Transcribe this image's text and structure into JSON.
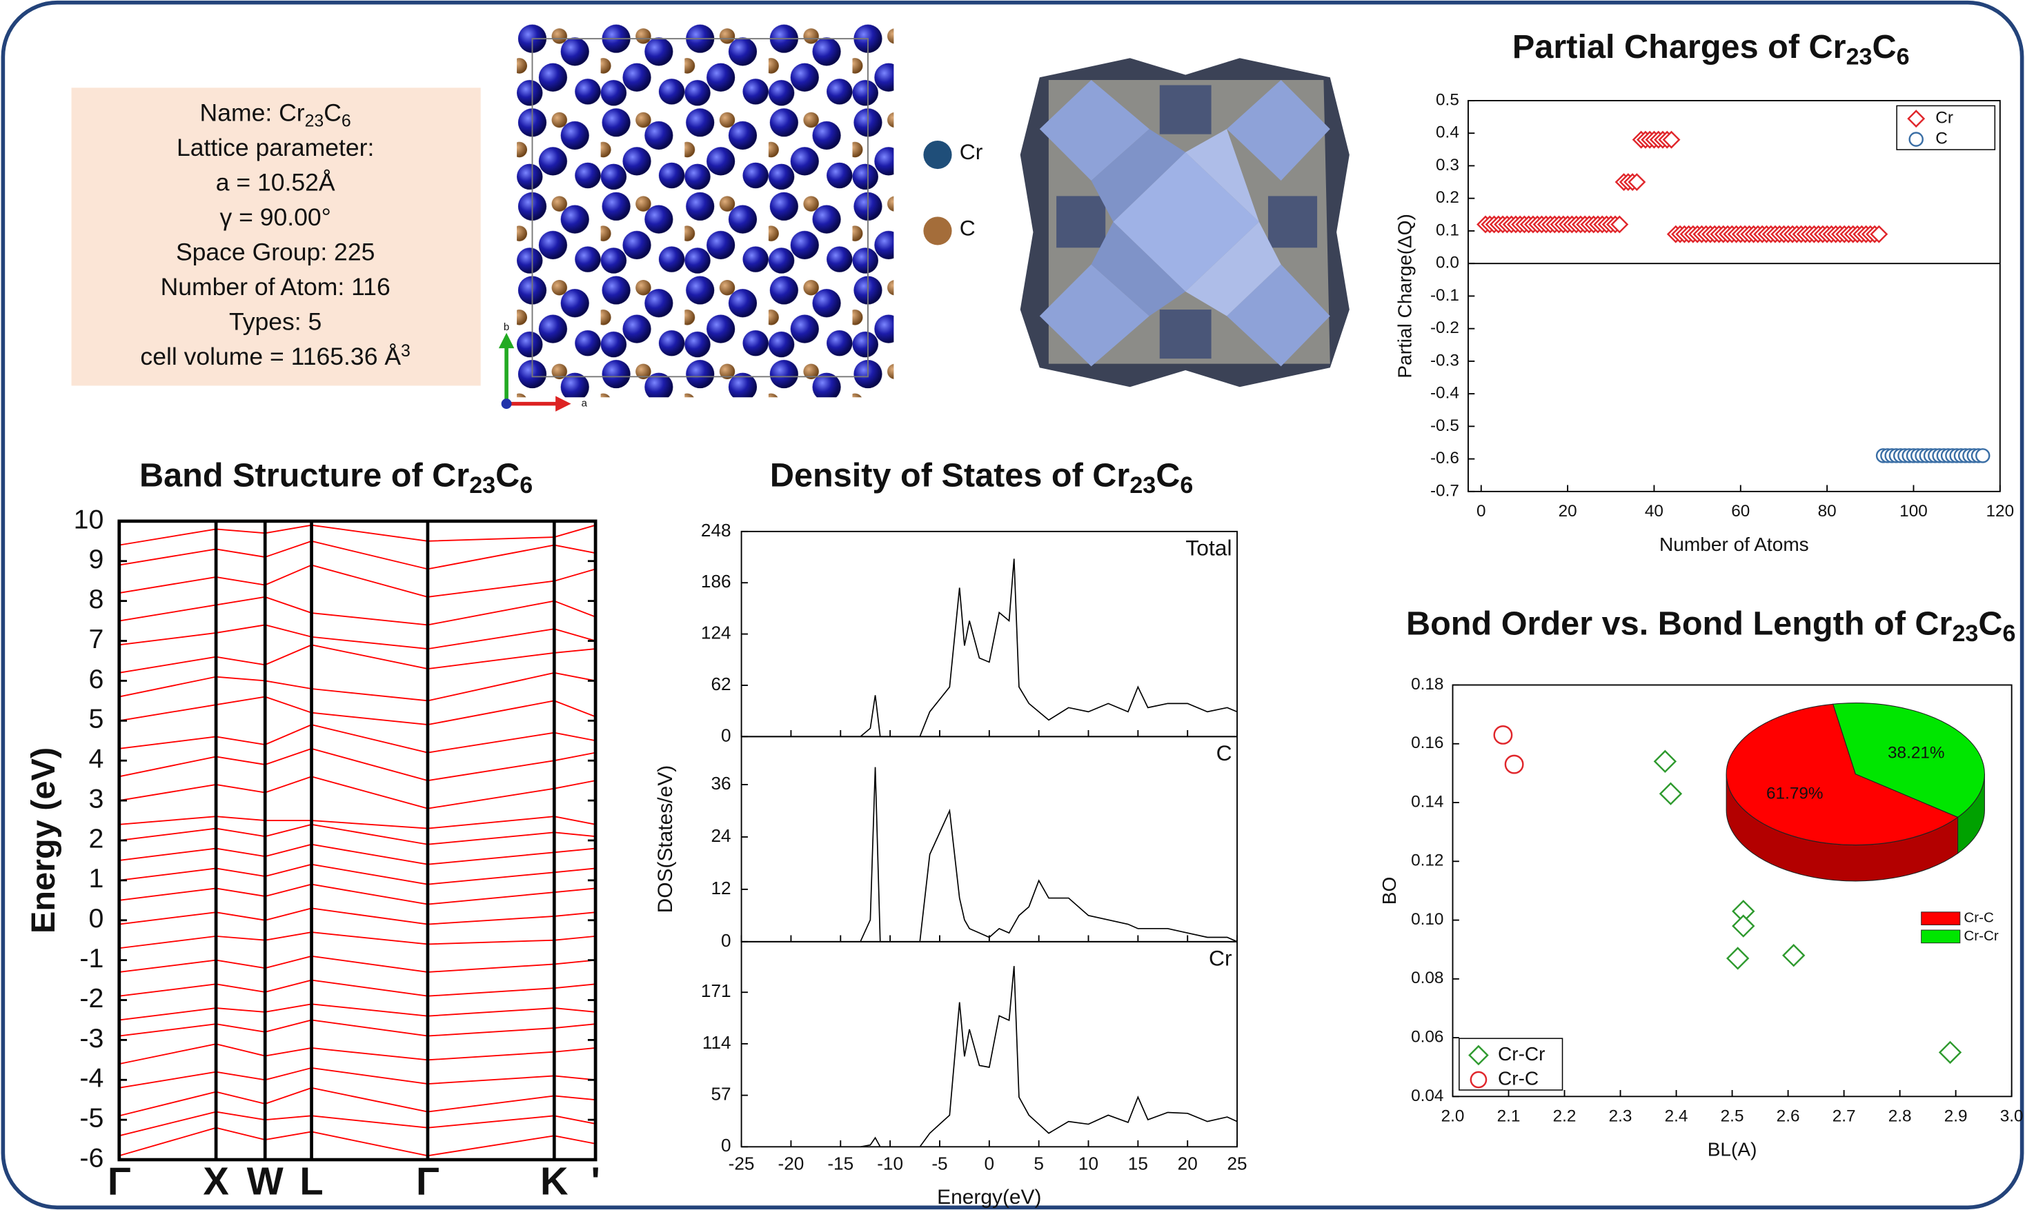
{
  "info": {
    "lines": [
      [
        "Name: Cr",
        "23",
        "C",
        "6"
      ],
      [
        "Lattice parameter:"
      ],
      [
        "a = 10.52Å"
      ],
      [
        "γ = 90.00°"
      ],
      [
        "Space Group: 225"
      ],
      [
        "Number of Atom: 116"
      ],
      [
        "Types: 5"
      ],
      [
        "cell volume =   1165.36 Å",
        "3"
      ]
    ]
  },
  "structure": {
    "legend": [
      "Cr",
      "C"
    ],
    "axes": [
      "a",
      "b"
    ]
  },
  "chart_data": [
    {
      "type": "scatter",
      "title": [
        "Partial Charges of Cr",
        "23",
        "C",
        "6"
      ],
      "x_label": "Number of Atoms",
      "y_label": "Partial Charge(ΔQ)",
      "xlim": [
        -3,
        120
      ],
      "xticks": [
        0,
        20,
        40,
        60,
        80,
        100,
        120
      ],
      "ylim": [
        -0.7,
        0.5
      ],
      "yticks": [
        -0.7,
        -0.6,
        -0.5,
        -0.4,
        -0.3,
        -0.2,
        -0.1,
        {
          "value": 0,
          "label": "0.0"
        },
        0.1,
        0.2,
        0.3,
        0.4,
        0.5
      ],
      "zero_line": true,
      "legend": "upper right",
      "series": [
        {
          "name": "Cr",
          "color": "#e0262b",
          "marker": "diamond",
          "x": [
            1,
            2,
            3,
            4,
            5,
            6,
            7,
            8,
            9,
            10,
            11,
            12,
            13,
            14,
            15,
            16,
            17,
            18,
            19,
            20,
            21,
            22,
            23,
            24,
            25,
            26,
            27,
            28,
            29,
            30,
            31,
            32,
            33,
            34,
            35,
            36,
            37,
            38,
            39,
            40,
            41,
            42,
            43,
            44,
            45,
            46,
            47,
            48,
            49,
            50,
            51,
            52,
            53,
            54,
            55,
            56,
            57,
            58,
            59,
            60,
            61,
            62,
            63,
            64,
            65,
            66,
            67,
            68,
            69,
            70,
            71,
            72,
            73,
            74,
            75,
            76,
            77,
            78,
            79,
            80,
            81,
            82,
            83,
            84,
            85,
            86,
            87,
            88,
            89,
            90,
            91,
            92
          ],
          "values": [
            0.12,
            0.12,
            0.12,
            0.12,
            0.12,
            0.12,
            0.12,
            0.12,
            0.12,
            0.12,
            0.12,
            0.12,
            0.12,
            0.12,
            0.12,
            0.12,
            0.12,
            0.12,
            0.12,
            0.12,
            0.12,
            0.12,
            0.12,
            0.12,
            0.12,
            0.12,
            0.12,
            0.12,
            0.12,
            0.12,
            0.12,
            0.12,
            0.25,
            0.25,
            0.25,
            0.25,
            0.38,
            0.38,
            0.38,
            0.38,
            0.38,
            0.38,
            0.38,
            0.38,
            0.09,
            0.09,
            0.09,
            0.09,
            0.09,
            0.09,
            0.09,
            0.09,
            0.09,
            0.09,
            0.09,
            0.09,
            0.09,
            0.09,
            0.09,
            0.09,
            0.09,
            0.09,
            0.09,
            0.09,
            0.09,
            0.09,
            0.09,
            0.09,
            0.09,
            0.09,
            0.09,
            0.09,
            0.09,
            0.09,
            0.09,
            0.09,
            0.09,
            0.09,
            0.09,
            0.09,
            0.09,
            0.09,
            0.09,
            0.09,
            0.09,
            0.09,
            0.09,
            0.09,
            0.09,
            0.09,
            0.09,
            0.09
          ]
        },
        {
          "name": "C",
          "color": "#3a6ea5",
          "marker": "circle",
          "x": [
            93,
            94,
            95,
            96,
            97,
            98,
            99,
            100,
            101,
            102,
            103,
            104,
            105,
            106,
            107,
            108,
            109,
            110,
            111,
            112,
            113,
            114,
            115,
            116
          ],
          "values": [
            -0.59,
            -0.59,
            -0.59,
            -0.59,
            -0.59,
            -0.59,
            -0.59,
            -0.59,
            -0.59,
            -0.59,
            -0.59,
            -0.59,
            -0.59,
            -0.59,
            -0.59,
            -0.59,
            -0.59,
            -0.59,
            -0.59,
            -0.59,
            -0.59,
            -0.59,
            -0.59,
            -0.59
          ]
        }
      ]
    },
    {
      "type": "line",
      "title": [
        "Band Structure of Cr",
        "23",
        "C",
        "6"
      ],
      "y_label": "Energy (eV)",
      "x": [
        0,
        0.75,
        1.13,
        1.49,
        2.39,
        3.37,
        3.69
      ],
      "xlim": [
        0,
        3.69
      ],
      "xticks": [
        {
          "value": 0,
          "label": "Γ"
        },
        {
          "value": 0.75,
          "label": "X"
        },
        {
          "value": 1.13,
          "label": "W"
        },
        {
          "value": 1.49,
          "label": "L"
        },
        {
          "value": 2.39,
          "label": "Γ"
        },
        {
          "value": 3.37,
          "label": "K"
        },
        {
          "value": 3.69,
          "label": "'"
        }
      ],
      "ylim": [
        -6,
        10
      ],
      "yticks": [
        -6,
        -5,
        -4,
        -3,
        -2,
        -1,
        0,
        1,
        2,
        3,
        4,
        5,
        6,
        7,
        8,
        9,
        10
      ],
      "grid": "x",
      "series": [
        {
          "color": "#ff0000",
          "values": [
            -5.9,
            -5.2,
            -5.5,
            -5.3,
            -5.9,
            -5.4,
            -5.6
          ]
        },
        {
          "color": "#ff0000",
          "values": [
            -5.4,
            -4.8,
            -5.0,
            -4.9,
            -5.2,
            -4.9,
            -5.1
          ]
        },
        {
          "color": "#ff0000",
          "values": [
            -4.9,
            -4.3,
            -4.6,
            -4.2,
            -4.8,
            -4.4,
            -4.5
          ]
        },
        {
          "color": "#ff0000",
          "values": [
            -4.2,
            -3.8,
            -4.0,
            -3.7,
            -4.1,
            -3.9,
            -4.0
          ]
        },
        {
          "color": "#ff0000",
          "values": [
            -3.6,
            -3.1,
            -3.4,
            -3.2,
            -3.5,
            -3.3,
            -3.2
          ]
        },
        {
          "color": "#ff0000",
          "values": [
            -2.9,
            -2.6,
            -2.8,
            -2.5,
            -2.9,
            -2.7,
            -2.6
          ]
        },
        {
          "color": "#ff0000",
          "values": [
            -2.5,
            -2.2,
            -2.3,
            -2.1,
            -2.4,
            -2.2,
            -2.3
          ]
        },
        {
          "color": "#ff0000",
          "values": [
            -1.9,
            -1.6,
            -1.8,
            -1.5,
            -1.9,
            -1.7,
            -1.6
          ]
        },
        {
          "color": "#ff0000",
          "values": [
            -1.3,
            -1.0,
            -1.2,
            -0.9,
            -1.3,
            -1.1,
            -1.0
          ]
        },
        {
          "color": "#ff0000",
          "values": [
            -0.7,
            -0.4,
            -0.5,
            -0.3,
            -0.6,
            -0.5,
            -0.4
          ]
        },
        {
          "color": "#ff0000",
          "values": [
            -0.1,
            0.2,
            0.0,
            0.3,
            -0.1,
            0.1,
            0.2
          ]
        },
        {
          "color": "#ff0000",
          "values": [
            0.5,
            0.8,
            0.6,
            0.9,
            0.4,
            0.7,
            0.8
          ]
        },
        {
          "color": "#ff0000",
          "values": [
            1.0,
            1.3,
            1.1,
            1.4,
            0.9,
            1.2,
            1.3
          ]
        },
        {
          "color": "#ff0000",
          "values": [
            1.5,
            1.8,
            1.6,
            1.9,
            1.4,
            1.7,
            1.8
          ]
        },
        {
          "color": "#ff0000",
          "values": [
            2.0,
            2.3,
            2.1,
            2.4,
            1.9,
            2.2,
            2.1
          ]
        },
        {
          "color": "#ff0000",
          "values": [
            2.4,
            2.6,
            2.5,
            2.5,
            2.3,
            2.6,
            2.4
          ]
        },
        {
          "color": "#ff0000",
          "values": [
            3.0,
            3.4,
            3.2,
            3.6,
            2.8,
            3.3,
            3.5
          ]
        },
        {
          "color": "#ff0000",
          "values": [
            3.6,
            4.1,
            3.9,
            4.3,
            3.5,
            4.0,
            4.2
          ]
        },
        {
          "color": "#ff0000",
          "values": [
            4.3,
            4.6,
            4.4,
            4.9,
            4.2,
            4.7,
            4.5
          ]
        },
        {
          "color": "#ff0000",
          "values": [
            5.0,
            5.4,
            5.6,
            5.2,
            4.9,
            5.5,
            5.1
          ]
        },
        {
          "color": "#ff0000",
          "values": [
            5.6,
            6.1,
            6.0,
            5.8,
            5.5,
            6.2,
            6.0
          ]
        },
        {
          "color": "#ff0000",
          "values": [
            6.2,
            6.6,
            6.4,
            6.9,
            6.3,
            6.7,
            6.8
          ]
        },
        {
          "color": "#ff0000",
          "values": [
            6.9,
            7.2,
            7.4,
            7.1,
            6.8,
            7.3,
            7.0
          ]
        },
        {
          "color": "#ff0000",
          "values": [
            7.5,
            7.9,
            8.1,
            7.7,
            7.4,
            8.0,
            7.6
          ]
        },
        {
          "color": "#ff0000",
          "values": [
            8.2,
            8.6,
            8.4,
            8.9,
            8.1,
            8.5,
            8.8
          ]
        },
        {
          "color": "#ff0000",
          "values": [
            8.9,
            9.3,
            9.1,
            9.5,
            8.8,
            9.4,
            9.2
          ]
        },
        {
          "color": "#ff0000",
          "values": [
            9.4,
            9.8,
            9.7,
            9.9,
            9.5,
            9.6,
            9.9
          ]
        }
      ]
    },
    {
      "type": "line",
      "title": [
        "Density of States of Cr",
        "23",
        "C",
        "6"
      ],
      "x_label": "Energy(eV)",
      "y_label": "DOS(States/eV)",
      "x": [
        -13,
        -12,
        -11.5,
        -11,
        -10,
        -7,
        -6,
        -5,
        -4,
        -3,
        -2.5,
        -2,
        -1,
        0,
        1,
        2,
        2.5,
        3,
        4,
        5,
        6,
        8,
        10,
        12,
        14,
        15,
        16,
        18,
        20,
        22,
        24,
        25
      ],
      "xlim": [
        -25,
        25
      ],
      "xticks": [
        -25,
        -20,
        -15,
        -10,
        -5,
        0,
        5,
        10,
        15,
        20,
        25
      ],
      "series": [
        {
          "name": "Total",
          "color": "#000000",
          "ylim": [
            0,
            248
          ],
          "yticks": [
            0,
            62,
            124,
            186,
            248
          ],
          "values": [
            0,
            10,
            50,
            0,
            0,
            0,
            30,
            45,
            60,
            180,
            110,
            140,
            95,
            90,
            150,
            140,
            215,
            60,
            40,
            30,
            20,
            35,
            30,
            40,
            30,
            60,
            35,
            40,
            40,
            30,
            35,
            30
          ]
        },
        {
          "name": "C",
          "color": "#000000",
          "ylim": [
            0,
            47
          ],
          "yticks": [
            0,
            12,
            24,
            36
          ],
          "values": [
            0,
            5,
            40,
            0,
            0,
            0,
            20,
            25,
            30,
            10,
            5,
            3,
            2,
            1,
            3,
            2,
            4,
            6,
            8,
            14,
            10,
            10,
            6,
            5,
            4,
            3,
            3,
            3,
            2,
            1,
            1,
            0
          ]
        },
        {
          "name": "Cr",
          "color": "#000000",
          "ylim": [
            0,
            227
          ],
          "yticks": [
            0,
            57,
            114,
            171
          ],
          "values": [
            0,
            2,
            10,
            0,
            0,
            0,
            15,
            25,
            35,
            160,
            100,
            130,
            90,
            88,
            145,
            140,
            200,
            55,
            35,
            25,
            15,
            28,
            25,
            35,
            27,
            55,
            30,
            38,
            37,
            28,
            33,
            28
          ]
        }
      ]
    },
    {
      "type": "scatter",
      "title": [
        "Bond Order vs. Bond Length of Cr",
        "23",
        "C",
        "6"
      ],
      "x_label": "BL(A)",
      "y_label": "BO",
      "xlim": [
        2,
        3
      ],
      "xticks": [
        {
          "value": 2,
          "label": "2.0"
        },
        2.1,
        2.2,
        2.3,
        2.4,
        2.5,
        2.6,
        2.7,
        2.8,
        2.9,
        {
          "value": 3,
          "label": "3.0"
        }
      ],
      "ylim": [
        0.04,
        0.18
      ],
      "yticks": [
        0.04,
        0.06,
        0.08,
        {
          "value": 0.1,
          "label": "0.10"
        },
        0.12,
        0.14,
        0.16,
        0.18
      ],
      "legend": "lower left",
      "series": [
        {
          "name": "Cr-Cr",
          "color": "#2e9a2e",
          "marker": "diamond",
          "x": [
            2.38,
            2.39,
            2.52,
            2.52,
            2.51,
            2.61,
            2.89
          ],
          "values": [
            0.154,
            0.143,
            0.103,
            0.098,
            0.087,
            0.088,
            0.055
          ]
        },
        {
          "name": "Cr-C",
          "color": "#e0262b",
          "marker": "circle",
          "x": [
            2.09,
            2.11
          ],
          "values": [
            0.163,
            0.153
          ]
        }
      ]
    },
    {
      "type": "pie",
      "categories": [
        "Cr-C",
        "Cr-Cr"
      ],
      "values": [
        61.79,
        38.21
      ],
      "value_labels": [
        "61.79%",
        "38.21%"
      ],
      "colors": [
        "#ff0000",
        "#00e600"
      ]
    }
  ]
}
